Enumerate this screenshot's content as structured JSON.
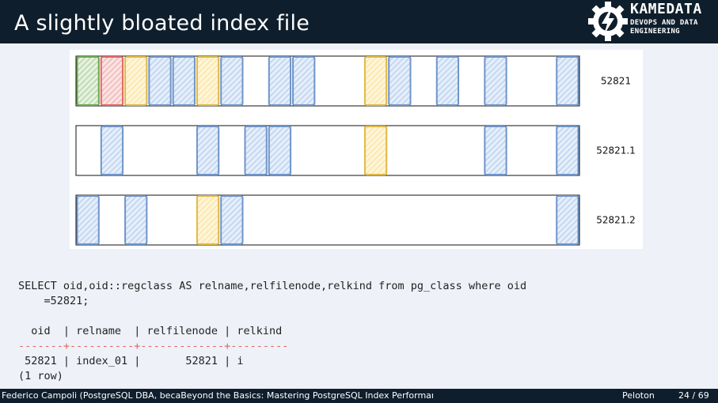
{
  "slide": {
    "title": "A slightly bloated index file",
    "logo": {
      "name": "KAMEDATA",
      "line1": "DEVOPS AND DATA",
      "line2": "ENGINEERING",
      "icon": "lightning-gear-icon"
    },
    "segments": [
      {
        "label": "52821",
        "pages": [
          "green",
          "red",
          "yellow",
          "blue",
          "blue",
          "yellow",
          "blue",
          "empty",
          "blue",
          "blue",
          "empty",
          "empty",
          "yellow",
          "blue",
          "empty",
          "blue",
          "empty",
          "blue",
          "empty",
          "empty",
          "blue"
        ]
      },
      {
        "label": "52821.1",
        "pages": [
          "empty",
          "blue",
          "empty",
          "empty",
          "empty",
          "blue",
          "empty",
          "blue",
          "blue",
          "empty",
          "empty",
          "empty",
          "yellow",
          "empty",
          "empty",
          "empty",
          "empty",
          "blue",
          "empty",
          "empty",
          "blue"
        ]
      },
      {
        "label": "52821.2",
        "pages": [
          "blue",
          "empty",
          "blue",
          "empty",
          "empty",
          "yellow",
          "blue",
          "empty",
          "empty",
          "empty",
          "empty",
          "empty",
          "empty",
          "empty",
          "empty",
          "empty",
          "empty",
          "empty",
          "empty",
          "empty",
          "blue"
        ]
      }
    ],
    "colors": {
      "green": {
        "stroke": "#6aa84f",
        "fill": "#b6d7a8"
      },
      "red": {
        "stroke": "#e06666",
        "fill": "#f4b6b6"
      },
      "yellow": {
        "stroke": "#e0b84a",
        "fill": "#fbe6a6"
      },
      "blue": {
        "stroke": "#6f95c8",
        "fill": "#bcd3f0"
      }
    },
    "query_line1": "SELECT oid,oid::regclass AS relname,relfilenode,relkind from pg_class where oid",
    "query_line2": "    =52821;",
    "result": {
      "header": "  oid  | relname  | relfilenode | relkind",
      "separator": "-------+----------+-------------+---------",
      "row": " 52821 | index_01 |       52821 | i",
      "footer": "(1 row)"
    },
    "footer": {
      "left": "Federico Campoli (PostgreSQL DBA, becaBeyond the Basics: Mastering PostgreSQL Index Performan",
      "mid": "Peloton",
      "page": "24 / 69"
    }
  }
}
